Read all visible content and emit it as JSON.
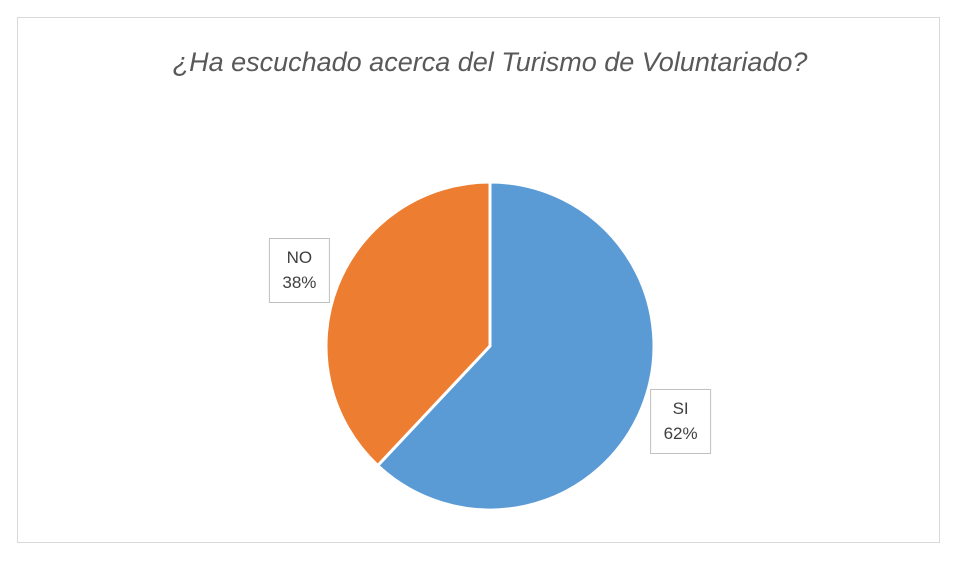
{
  "chart_data": {
    "type": "pie",
    "title": "¿Ha escuchado acerca del Turismo de Voluntariado?",
    "categories": [
      "SI",
      "NO"
    ],
    "values": [
      62,
      38
    ],
    "value_labels": [
      "62%",
      "38%"
    ],
    "colors": [
      "#5b9bd5",
      "#ed7d31"
    ]
  }
}
